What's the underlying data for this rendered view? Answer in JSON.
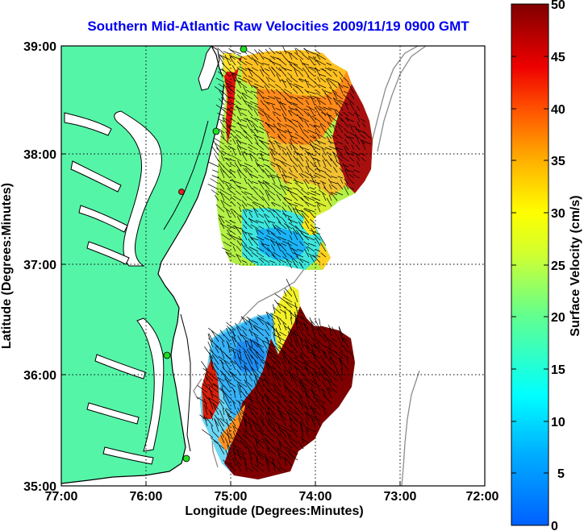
{
  "title": "Southern Mid-Atlantic Raw Velocities 2009/11/19 0900 GMT",
  "xlabel": "Longitude (Degrees:Minutes)",
  "ylabel": "Latitude (Degrees:Minutes)",
  "colorbar_label": "Surface Velocity (cm/s)",
  "x_ticks": [
    "77:00",
    "76:00",
    "75:00",
    "74:00",
    "73:00",
    "72:00"
  ],
  "y_ticks": [
    "39:00",
    "38:00",
    "37:00",
    "36:00",
    "35:00"
  ],
  "colorbar_ticks": [
    "50",
    "45",
    "40",
    "35",
    "30",
    "25",
    "20",
    "15",
    "10",
    "5",
    "0"
  ],
  "colors": {
    "land": "#55f5a8",
    "title": "#0000ee",
    "grid": "#000000",
    "station": "#22dd22",
    "station_alert": "#dd2222"
  },
  "chart_data": {
    "type": "heatmap",
    "title": "Southern Mid-Atlantic Raw Velocities 2009/11/19 0900 GMT",
    "xlabel": "Longitude (Degrees:Minutes)",
    "ylabel": "Latitude (Degrees:Minutes)",
    "xlim": [
      -77,
      -72
    ],
    "ylim": [
      35,
      39
    ],
    "grid": true,
    "colorbar": {
      "label": "Surface Velocity (cm/s)",
      "range": [
        0,
        50
      ],
      "colormap": "jet"
    },
    "regions": [
      {
        "name": "north",
        "approx_velocity_range_cm_s": [
          8,
          50
        ]
      },
      {
        "name": "south",
        "approx_velocity_range_cm_s": [
          5,
          50
        ]
      }
    ],
    "stations": [
      {
        "lon": -74.98,
        "lat": 38.98,
        "status": "ok"
      },
      {
        "lon": -75.1,
        "lat": 38.23,
        "status": "ok"
      },
      {
        "lon": -75.53,
        "lat": 37.68,
        "status": "alert"
      },
      {
        "lon": -75.7,
        "lat": 36.2,
        "status": "ok"
      },
      {
        "lon": -75.47,
        "lat": 35.25,
        "status": "ok"
      }
    ]
  }
}
